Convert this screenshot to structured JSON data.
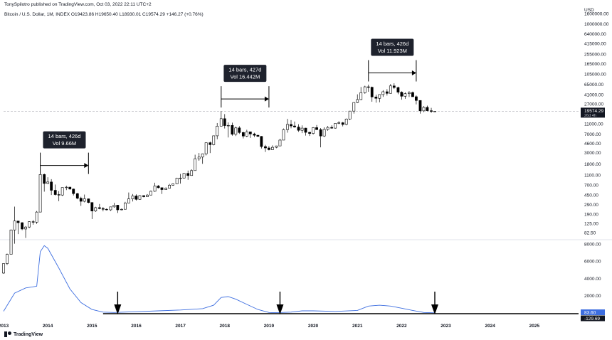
{
  "header": {
    "published": "TonySpilotro published on TradingView.com, Oct 03, 2022 22:11 UTC+2",
    "symbol_line": "Bitcoin / U.S. Dollar, 1M, INDEX  O19423.86  H19650.40  L18930.01  C19574.29  +146.27 (+0.76%)"
  },
  "footer": {
    "brand": "TradingView"
  },
  "colors": {
    "up": "#ffffff",
    "down": "#000000",
    "indicator": "#3d6ee0",
    "price_line": "#9598a1",
    "ann_bg": "#1e222d"
  },
  "chart_data": [
    {
      "type": "candlestick",
      "scale": "log",
      "currency": "USD",
      "y_ticks": [
        1600000,
        1000000,
        640000,
        415000,
        255000,
        165000,
        105000,
        65000,
        41000,
        27000,
        17000,
        11000,
        7000,
        4600,
        3000,
        1800,
        1100,
        700,
        450,
        290,
        190,
        125,
        82.5
      ],
      "y_tick_labels": [
        "1600000.00",
        "1000000.00",
        "640000.00",
        "415000.00",
        "255000.00",
        "165000.00",
        "105000.00",
        "65000.00",
        "41000.00",
        "27000.00",
        "17000.00",
        "11000.00",
        "7000.00",
        "4600.00",
        "3000.00",
        "1800.00",
        "1100.00",
        "700.00",
        "450.00",
        "290.00",
        "190.00",
        "125.00",
        "82.50"
      ],
      "x_ticks": [
        "2013",
        "2014",
        "2015",
        "2016",
        "2017",
        "2018",
        "2019",
        "2020",
        "2021",
        "2022",
        "2023",
        "2024",
        "2025"
      ],
      "x_range": [
        2013.0,
        2026.0
      ],
      "last_price": "19574.29",
      "countdown": "26d 4h",
      "candles": [
        [
          2013.0,
          13.3,
          20.4,
          12.9,
          20.4
        ],
        [
          2013.08,
          20.4,
          32.0,
          19.2,
          31.0
        ],
        [
          2013.17,
          31.0,
          95.0,
          31.0,
          93.0
        ],
        [
          2013.25,
          93.0,
          266.0,
          50.0,
          139.0
        ],
        [
          2013.33,
          139.0,
          140.0,
          77.0,
          129.0
        ],
        [
          2013.42,
          129.0,
          132.0,
          92.0,
          97.0
        ],
        [
          2013.5,
          97.0,
          111.0,
          65.0,
          106.0
        ],
        [
          2013.58,
          106.0,
          138.0,
          101.0,
          135.0
        ],
        [
          2013.67,
          135.0,
          146.0,
          118.0,
          132.0
        ],
        [
          2013.75,
          132.0,
          218.0,
          122.0,
          208.0
        ],
        [
          2013.83,
          208.0,
          1242.0,
          208.0,
          1130.0
        ],
        [
          2013.92,
          1130.0,
          1180.0,
          522.0,
          755.0
        ],
        [
          2014.0,
          755.0,
          1000.0,
          735.0,
          807.0
        ],
        [
          2014.08,
          807.0,
          915.0,
          450.0,
          555.0
        ],
        [
          2014.17,
          555.0,
          720.0,
          440.0,
          458.0
        ],
        [
          2014.25,
          458.0,
          535.0,
          340.0,
          448.0
        ],
        [
          2014.33,
          448.0,
          630.0,
          430.0,
          628.0
        ],
        [
          2014.42,
          628.0,
          680.0,
          560.0,
          640.0
        ],
        [
          2014.5,
          640.0,
          650.0,
          570.0,
          587.0
        ],
        [
          2014.58,
          587.0,
          600.0,
          440.0,
          478.0
        ],
        [
          2014.67,
          478.0,
          495.0,
          370.0,
          388.0
        ],
        [
          2014.75,
          388.0,
          415.0,
          275.0,
          338.0
        ],
        [
          2014.83,
          338.0,
          458.0,
          322.0,
          378.0
        ],
        [
          2014.92,
          378.0,
          381.0,
          310.0,
          320.0
        ],
        [
          2015.0,
          320.0,
          323.0,
          152.0,
          218.0
        ],
        [
          2015.08,
          218.0,
          264.0,
          209.0,
          254.0
        ],
        [
          2015.17,
          254.0,
          300.0,
          236.0,
          244.0
        ],
        [
          2015.25,
          244.0,
          261.0,
          215.0,
          236.0
        ],
        [
          2015.33,
          236.0,
          245.0,
          224.0,
          230.0
        ],
        [
          2015.42,
          230.0,
          264.0,
          218.0,
          263.0
        ],
        [
          2015.5,
          263.0,
          315.0,
          253.0,
          284.0
        ],
        [
          2015.58,
          284.0,
          287.0,
          200.0,
          230.0
        ],
        [
          2015.67,
          230.0,
          245.0,
          225.0,
          236.0
        ],
        [
          2015.75,
          236.0,
          330.0,
          236.0,
          313.0
        ],
        [
          2015.83,
          313.0,
          502.0,
          310.0,
          377.0
        ],
        [
          2015.92,
          377.0,
          470.0,
          335.0,
          430.0
        ],
        [
          2016.0,
          430.0,
          462.0,
          350.0,
          369.0
        ],
        [
          2016.08,
          369.0,
          448.0,
          364.0,
          437.0
        ],
        [
          2016.17,
          437.0,
          441.0,
          404.0,
          416.0
        ],
        [
          2016.25,
          416.0,
          468.0,
          415.0,
          448.0
        ],
        [
          2016.33,
          448.0,
          550.0,
          443.0,
          531.0
        ],
        [
          2016.42,
          531.0,
          780.0,
          520.0,
          673.0
        ],
        [
          2016.5,
          673.0,
          705.0,
          605.0,
          624.0
        ],
        [
          2016.58,
          624.0,
          626.0,
          470.0,
          573.0
        ],
        [
          2016.67,
          573.0,
          631.0,
          569.0,
          609.0
        ],
        [
          2016.75,
          609.0,
          740.0,
          604.0,
          700.0
        ],
        [
          2016.83,
          700.0,
          755.0,
          681.0,
          742.0
        ],
        [
          2016.92,
          742.0,
          979.0,
          735.0,
          963.0
        ],
        [
          2017.0,
          963.0,
          1161.0,
          751.0,
          965.0
        ],
        [
          2017.08,
          965.0,
          1210.0,
          944.0,
          1190.0
        ],
        [
          2017.17,
          1190.0,
          1350.0,
          891.0,
          1080.0
        ],
        [
          2017.25,
          1080.0,
          1430.0,
          1070.0,
          1350.0
        ],
        [
          2017.33,
          1350.0,
          2760.0,
          1340.0,
          2300.0
        ],
        [
          2017.42,
          2300.0,
          2980.0,
          2100.0,
          2480.0
        ],
        [
          2017.5,
          2480.0,
          2910.0,
          1830.0,
          2875.0
        ],
        [
          2017.58,
          2875.0,
          4760.0,
          2670.0,
          4740.0
        ],
        [
          2017.67,
          4740.0,
          4980.0,
          2970.0,
          4340.0
        ],
        [
          2017.75,
          4340.0,
          6470.0,
          4200.0,
          6470.0
        ],
        [
          2017.83,
          6470.0,
          11500.0,
          5550.0,
          10000.0
        ],
        [
          2017.92,
          10000.0,
          19800.0,
          9900.0,
          14000.0
        ],
        [
          2018.0,
          14000.0,
          17200.0,
          9000.0,
          10250.0
        ],
        [
          2018.08,
          10250.0,
          11800.0,
          6000.0,
          10350.0
        ],
        [
          2018.17,
          10350.0,
          11700.0,
          6500.0,
          6930.0
        ],
        [
          2018.25,
          6930.0,
          9800.0,
          6400.0,
          9240.0
        ],
        [
          2018.33,
          9240.0,
          9990.0,
          7050.0,
          7500.0
        ],
        [
          2018.42,
          7500.0,
          7770.0,
          5750.0,
          6390.0
        ],
        [
          2018.5,
          6390.0,
          8490.0,
          6100.0,
          7730.0
        ],
        [
          2018.58,
          7730.0,
          7760.0,
          5880.0,
          7030.0
        ],
        [
          2018.67,
          7030.0,
          7410.0,
          6130.0,
          6630.0
        ],
        [
          2018.75,
          6630.0,
          6760.0,
          6200.0,
          6300.0
        ],
        [
          2018.83,
          6300.0,
          6400.0,
          3650.0,
          3980.0
        ],
        [
          2018.92,
          3980.0,
          4310.0,
          3120.0,
          3740.0
        ],
        [
          2019.0,
          3740.0,
          4070.0,
          3350.0,
          3460.0
        ],
        [
          2019.08,
          3460.0,
          4210.0,
          3400.0,
          3850.0
        ],
        [
          2019.17,
          3850.0,
          4130.0,
          3700.0,
          4100.0
        ],
        [
          2019.25,
          4100.0,
          5640.0,
          4080.0,
          5330.0
        ],
        [
          2019.33,
          5330.0,
          9000.0,
          5330.0,
          8550.0
        ],
        [
          2019.42,
          8550.0,
          13880.0,
          7440.0,
          10820.0
        ],
        [
          2019.5,
          10820.0,
          13130.0,
          9070.0,
          10080.0
        ],
        [
          2019.58,
          10080.0,
          12320.0,
          9330.0,
          9600.0
        ],
        [
          2019.67,
          9600.0,
          10900.0,
          7730.0,
          8290.0
        ],
        [
          2019.75,
          8290.0,
          10370.0,
          7300.0,
          9150.0
        ],
        [
          2019.83,
          9150.0,
          9280.0,
          6530.0,
          7560.0
        ],
        [
          2019.92,
          7560.0,
          7740.0,
          6430.0,
          7190.0
        ],
        [
          2020.0,
          7190.0,
          9560.0,
          6860.0,
          9350.0
        ],
        [
          2020.08,
          9350.0,
          10500.0,
          8430.0,
          8540.0
        ],
        [
          2020.17,
          8540.0,
          9180.0,
          3850.0,
          6410.0
        ],
        [
          2020.25,
          6410.0,
          9470.0,
          6160.0,
          8630.0
        ],
        [
          2020.33,
          8630.0,
          10080.0,
          8100.0,
          9450.0
        ],
        [
          2020.42,
          9450.0,
          10380.0,
          8910.0,
          9140.0
        ],
        [
          2020.5,
          9140.0,
          11430.0,
          8930.0,
          11350.0
        ],
        [
          2020.58,
          11350.0,
          12480.0,
          10960.0,
          11660.0
        ],
        [
          2020.67,
          11660.0,
          12060.0,
          9880.0,
          10780.0
        ],
        [
          2020.75,
          10780.0,
          14100.0,
          10380.0,
          13800.0
        ],
        [
          2020.83,
          13800.0,
          19860.0,
          13200.0,
          19700.0
        ],
        [
          2020.92,
          19700.0,
          29300.0,
          17600.0,
          29000.0
        ],
        [
          2021.0,
          29000.0,
          41950.0,
          28130.0,
          33100.0
        ],
        [
          2021.08,
          33100.0,
          58350.0,
          32300.0,
          45200.0
        ],
        [
          2021.17,
          45200.0,
          61780.0,
          43000.0,
          58800.0
        ],
        [
          2021.25,
          58800.0,
          64860.0,
          47000.0,
          57700.0
        ],
        [
          2021.33,
          57700.0,
          59500.0,
          30000.0,
          37300.0
        ],
        [
          2021.42,
          37300.0,
          41330.0,
          28800.0,
          35000.0
        ],
        [
          2021.5,
          35000.0,
          42000.0,
          29300.0,
          41500.0
        ],
        [
          2021.58,
          41500.0,
          50500.0,
          37330.0,
          47100.0
        ],
        [
          2021.67,
          47100.0,
          52920.0,
          39600.0,
          43800.0
        ],
        [
          2021.75,
          43800.0,
          67000.0,
          43300.0,
          61300.0
        ],
        [
          2021.83,
          61300.0,
          69000.0,
          53250.0,
          57000.0
        ],
        [
          2021.92,
          57000.0,
          59050.0,
          42000.0,
          46200.0
        ],
        [
          2022.0,
          46200.0,
          47990.0,
          32930.0,
          38480.0
        ],
        [
          2022.08,
          38480.0,
          45800.0,
          34320.0,
          43200.0
        ],
        [
          2022.17,
          43200.0,
          48240.0,
          37150.0,
          45510.0
        ],
        [
          2022.25,
          45510.0,
          47440.0,
          37700.0,
          37640.0
        ],
        [
          2022.33,
          37640.0,
          40000.0,
          26700.0,
          31800.0
        ],
        [
          2022.42,
          31800.0,
          31990.0,
          17570.0,
          19930.0
        ],
        [
          2022.5,
          19930.0,
          24670.0,
          18780.0,
          23290.0
        ],
        [
          2022.58,
          23290.0,
          25210.0,
          19570.0,
          20050.0
        ],
        [
          2022.67,
          20050.0,
          22790.0,
          18120.0,
          19420.0
        ],
        [
          2022.75,
          19420.0,
          19650.0,
          18930.0,
          19570.0
        ]
      ]
    },
    {
      "type": "line",
      "indicator_ticks": [
        8000,
        6000,
        4000,
        2000
      ],
      "indicator_tick_labels": [
        "8000.00",
        "6000.00",
        "4000.00",
        "2000.00"
      ],
      "indicator_value": "83.60",
      "indicator_baseline": "-129.69",
      "series": [
        {
          "x": [
            2013.0,
            2013.25,
            2013.5,
            2013.75,
            2013.83,
            2013.92,
            2014.0,
            2014.25,
            2014.5,
            2014.75,
            2015.0,
            2015.25,
            2015.5,
            2016.0,
            2016.5,
            2017.0,
            2017.5,
            2017.75,
            2017.92,
            2018.08,
            2018.25,
            2018.5,
            2018.75,
            2019.0,
            2019.17,
            2019.5,
            2019.75,
            2020.0,
            2020.5,
            2021.0,
            2021.25,
            2021.5,
            2021.75,
            2022.0,
            2022.25,
            2022.5,
            2022.75
          ],
          "y": [
            200,
            2300,
            2900,
            3100,
            7100,
            7800,
            7500,
            5200,
            2800,
            1200,
            400,
            100,
            60,
            150,
            250,
            350,
            500,
            900,
            1800,
            1900,
            1600,
            1000,
            400,
            60,
            30,
            100,
            250,
            250,
            180,
            300,
            800,
            900,
            800,
            550,
            300,
            60,
            20
          ]
        }
      ],
      "markers": [
        2015.58,
        2019.25,
        2022.75
      ]
    }
  ],
  "annotations": [
    {
      "text1": "14 bars, 426d",
      "text2": "Vol 9.66M",
      "x1": 2013.83,
      "x2": 2014.92,
      "price": 1700
    },
    {
      "text1": "14 bars, 427d",
      "text2": "Vol 16.442M",
      "x1": 2017.92,
      "x2": 2019.0,
      "price": 34000
    },
    {
      "text1": "14 bars, 426d",
      "text2": "Vol 11.923M",
      "x1": 2021.25,
      "x2": 2022.33,
      "price": 110000
    }
  ]
}
